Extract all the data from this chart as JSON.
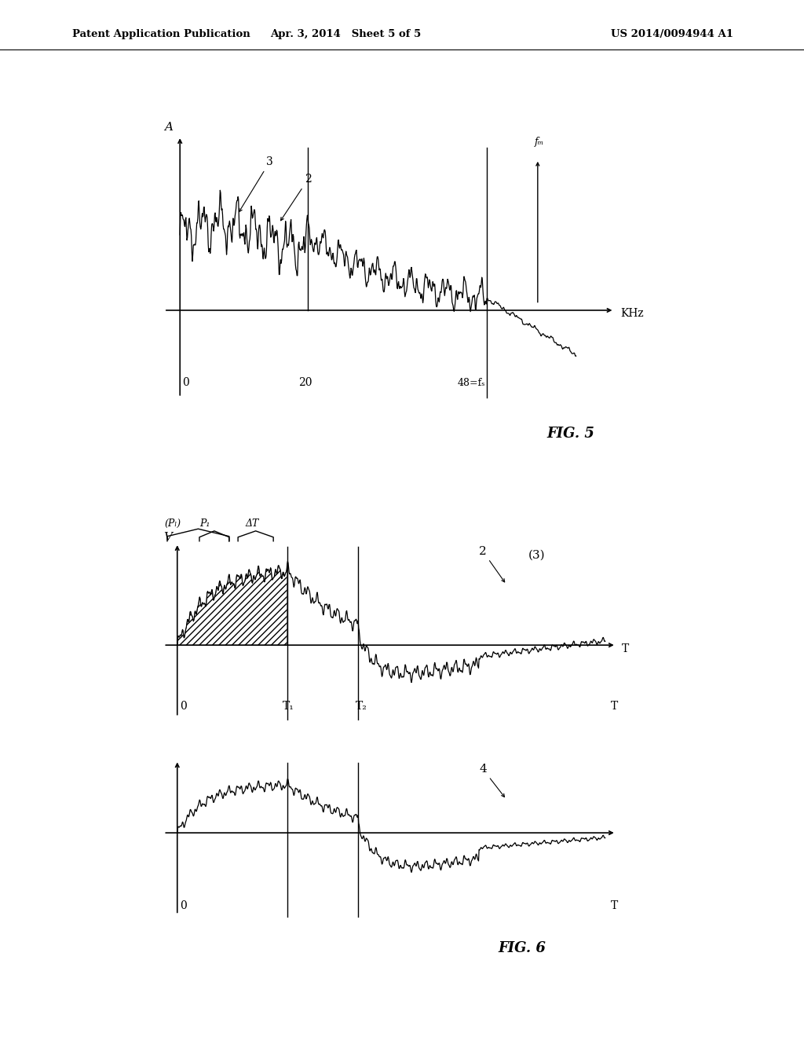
{
  "background_color": "#ffffff",
  "header_left": "Patent Application Publication",
  "header_mid": "Apr. 3, 2014   Sheet 5 of 5",
  "header_right": "US 2014/0094944 A1",
  "fig5_title": "FIG. 5",
  "fig6_title": "FIG. 6",
  "fig5_ylabel": "A",
  "fig5_xlabel": "KHz",
  "fig5_x0_label": "0",
  "fig5_x20_label": "20",
  "fig5_x48_label": "48=fₛ",
  "fig5_fm_label": "fₘ",
  "fig5_label2": "2",
  "fig5_label3": "3",
  "fig6_ylabel": "V",
  "fig6_xlabel_T": "T",
  "fig6_PL_label": "(Pₗ)",
  "fig6_P1_label": "P₁",
  "fig6_DT_label": "ΔT",
  "fig6_T1_label": "T₁",
  "fig6_T2_label": "T₂",
  "fig6_label2": "2",
  "fig6_label3": "(3)",
  "fig6_label4": "4",
  "fig6_bot_xlabel_T": "T",
  "fig6_bot_label0": "0",
  "fig6_top_label0": "0"
}
